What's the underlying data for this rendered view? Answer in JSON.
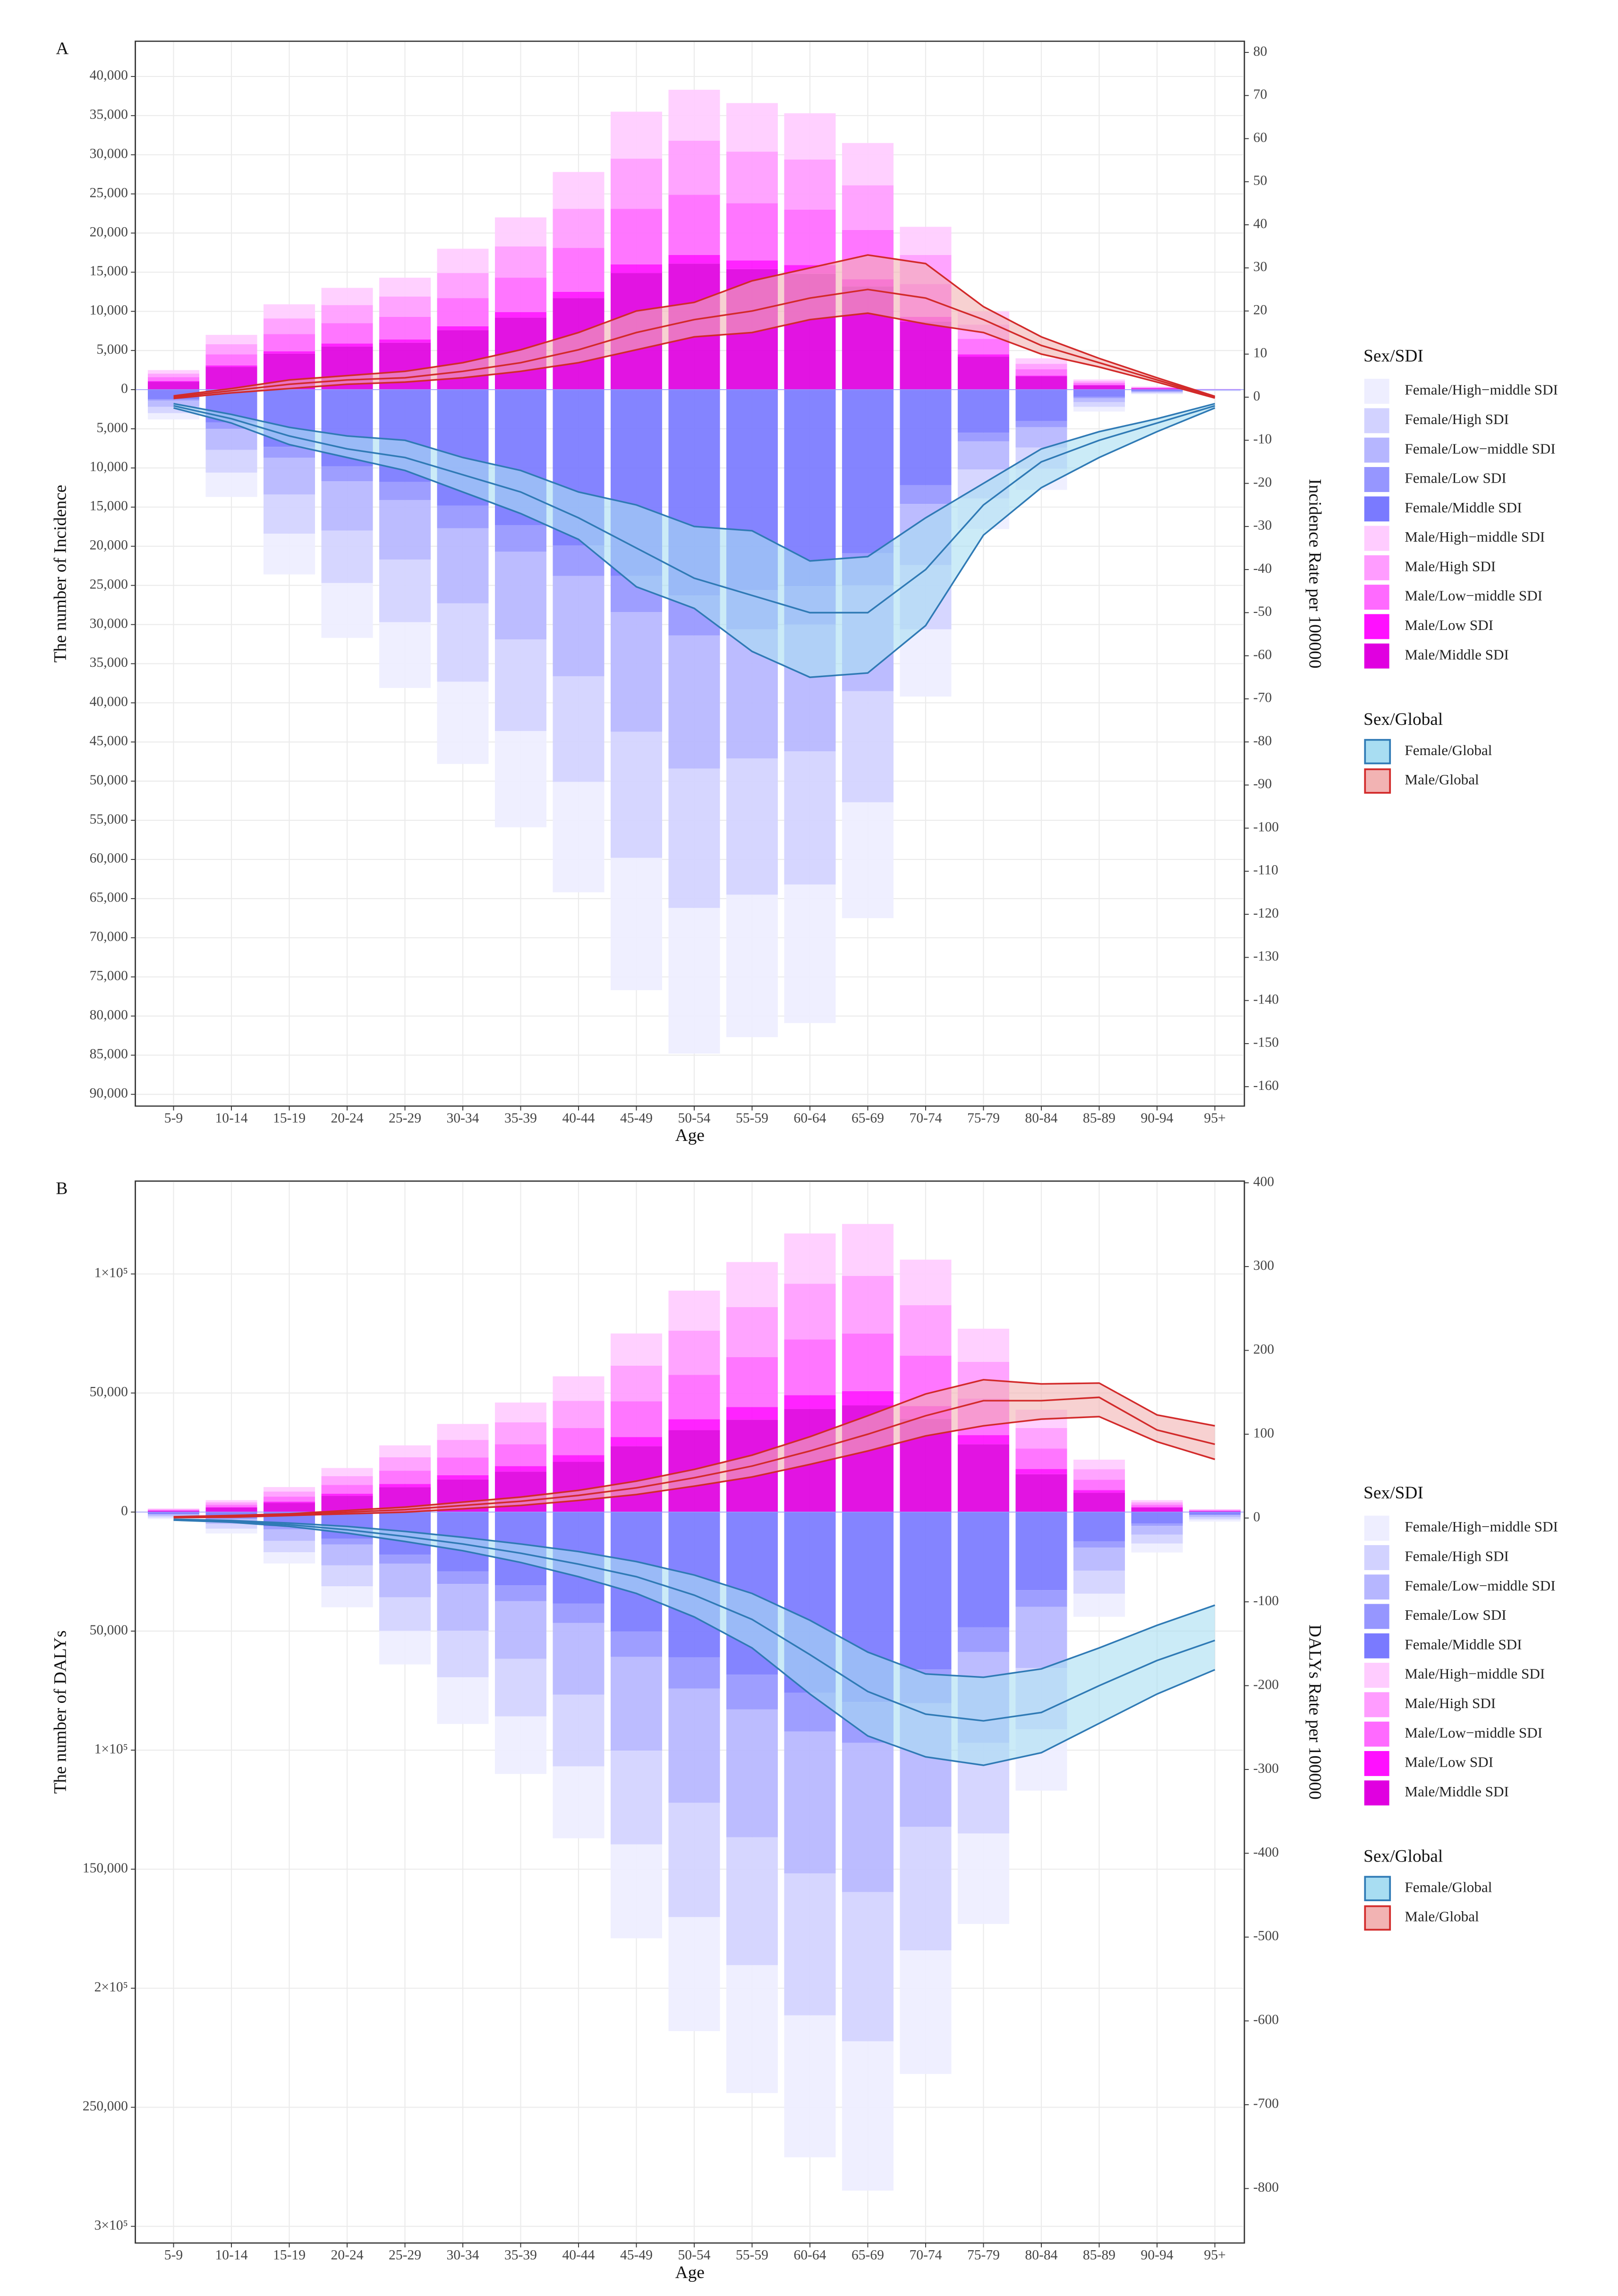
{
  "chart_data": [
    {
      "type": "bar",
      "panel_label": "A",
      "xlabel": "Age",
      "ylabel": "The number of Incidence",
      "y2label": "Incidence Rate per 100000",
      "legend_title": "Sex/SDI",
      "legend2_title": "Sex/Global",
      "grid": true,
      "categories": [
        "5-9",
        "10-14",
        "15-19",
        "20-24",
        "25-29",
        "30-34",
        "35-39",
        "40-44",
        "45-49",
        "50-54",
        "55-59",
        "60-64",
        "65-69",
        "70-74",
        "75-79",
        "80-84",
        "85-89",
        "90-94",
        "95+"
      ],
      "ylim": [
        -91500,
        44500
      ],
      "yticks": [
        {
          "value": 40000,
          "label": "40,000"
        },
        {
          "value": 35000,
          "label": "35,000"
        },
        {
          "value": 30000,
          "label": "30,000"
        },
        {
          "value": 25000,
          "label": "25,000"
        },
        {
          "value": 20000,
          "label": "20,000"
        },
        {
          "value": 15000,
          "label": "15,000"
        },
        {
          "value": 10000,
          "label": "10,000"
        },
        {
          "value": 5000,
          "label": "5,000"
        },
        0,
        {
          "value": -5000,
          "label": "5,000"
        },
        {
          "value": -10000,
          "label": "10,000"
        },
        {
          "value": -15000,
          "label": "15,000"
        },
        {
          "value": -20000,
          "label": "20,000"
        },
        {
          "value": -25000,
          "label": "25,000"
        },
        {
          "value": -30000,
          "label": "30,000"
        },
        {
          "value": -35000,
          "label": "35,000"
        },
        {
          "value": -40000,
          "label": "40,000"
        },
        {
          "value": -45000,
          "label": "45,000"
        },
        {
          "value": -50000,
          "label": "50,000"
        },
        {
          "value": -55000,
          "label": "55,000"
        },
        {
          "value": -60000,
          "label": "60,000"
        },
        {
          "value": -65000,
          "label": "65,000"
        },
        {
          "value": -70000,
          "label": "70,000"
        },
        {
          "value": -75000,
          "label": "75,000"
        },
        {
          "value": -80000,
          "label": "80,000"
        },
        {
          "value": -85000,
          "label": "85,000"
        },
        {
          "value": -90000,
          "label": "90,000"
        }
      ],
      "y2lim": [
        -164.5,
        82.6
      ],
      "y2ticks": [
        80,
        70,
        60,
        50,
        40,
        30,
        20,
        10,
        0,
        -10,
        -20,
        -30,
        -40,
        -50,
        -60,
        -70,
        -80,
        -90,
        -100,
        -110,
        -120,
        -130,
        -140,
        -150,
        -160
      ],
      "series": [
        {
          "name": "Female/High−middle SDI",
          "color": "#eeeeff",
          "values": [
            -800,
            -3100,
            -5200,
            -7000,
            -8400,
            -10500,
            -12300,
            -14100,
            -16900,
            -18600,
            -18200,
            -17700,
            -14800,
            -8600,
            -3900,
            -2700,
            -600,
            -120,
            -50
          ]
        },
        {
          "name": "Female/High SDI",
          "color": "#d2d2ff",
          "values": [
            -800,
            -2900,
            -5000,
            -6700,
            -8000,
            -10000,
            -11700,
            -13500,
            -16100,
            -17800,
            -17400,
            -17000,
            -14200,
            -8200,
            -3700,
            -2700,
            -600,
            -120,
            -40
          ]
        },
        {
          "name": "Female/Low−middle SDI",
          "color": "#b6b6ff",
          "values": [
            -800,
            -2700,
            -4700,
            -6300,
            -7600,
            -9600,
            -11200,
            -12800,
            -15300,
            -17000,
            -16500,
            -16200,
            -13500,
            -7800,
            -3600,
            -2600,
            -500,
            -120,
            -40
          ]
        },
        {
          "name": "Female/Low SDI",
          "color": "#9696ff",
          "values": [
            -200,
            -800,
            -1400,
            -1900,
            -2300,
            -2900,
            -3400,
            -3900,
            -4600,
            -5100,
            -5000,
            -4900,
            -4100,
            -2400,
            -1100,
            -800,
            -200,
            -40,
            -10
          ]
        },
        {
          "name": "Female/Middle SDI",
          "color": "#7a7aff",
          "values": [
            -1200,
            -4200,
            -7300,
            -9800,
            -11800,
            -14800,
            -17300,
            -19900,
            -23800,
            -26300,
            -25600,
            -25100,
            -20900,
            -12200,
            -5500,
            -4000,
            -900,
            -200,
            -60
          ]
        },
        {
          "name": "Male/High−middle SDI",
          "color": "#ffccff",
          "values": [
            450,
            1200,
            1800,
            2200,
            2400,
            3100,
            3700,
            4700,
            6000,
            6500,
            6200,
            5900,
            5400,
            3600,
            1700,
            700,
            220,
            70,
            15
          ]
        },
        {
          "name": "Male/High SDI",
          "color": "#ff9cff",
          "values": [
            450,
            1300,
            2000,
            2300,
            2600,
            3200,
            4000,
            5000,
            6400,
            6900,
            6600,
            6400,
            5700,
            3700,
            1800,
            700,
            230,
            70,
            20
          ]
        },
        {
          "name": "Male/Low−middle SDI",
          "color": "#ff6aff",
          "values": [
            500,
            1400,
            2200,
            2600,
            2900,
            3600,
            4400,
            5600,
            7100,
            7700,
            7300,
            7100,
            6300,
            4200,
            2000,
            800,
            260,
            80,
            20
          ]
        },
        {
          "name": "Male/Low SDI",
          "color": "#ff10ff",
          "values": [
            100,
            200,
            300,
            400,
            400,
            500,
            700,
            800,
            1100,
            1100,
            1100,
            1100,
            900,
            600,
            300,
            100,
            40,
            10,
            5
          ]
        },
        {
          "name": "Male/Middle SDI",
          "color": "#e000e0",
          "values": [
            1000,
            2900,
            4600,
            5500,
            6000,
            7600,
            9200,
            11700,
            14900,
            16100,
            15400,
            14800,
            13200,
            8700,
            4200,
            1700,
            550,
            170,
            40
          ]
        }
      ],
      "rate_series": [
        {
          "name": "Female/Global",
          "axis": "y2",
          "color": "#2f7ab5",
          "fill": "#a8ddf2",
          "values": [
            -2,
            -5,
            -9,
            -12,
            -14,
            -18,
            -22,
            -28,
            -35,
            -42,
            -46,
            -50,
            -50,
            -40,
            -25,
            -15,
            -10,
            -6,
            -2
          ],
          "upper": [
            -1.5,
            -4,
            -7,
            -9,
            -10,
            -14,
            -17,
            -22,
            -25,
            -30,
            -31,
            -38,
            -37,
            -28,
            -20,
            -12,
            -8,
            -5,
            -1.5
          ],
          "lower": [
            -2.5,
            -6,
            -11,
            -14,
            -17,
            -22,
            -27,
            -33,
            -44,
            -49,
            -59,
            -65,
            -64,
            -53,
            -32,
            -21,
            -14,
            -8,
            -2.5
          ]
        },
        {
          "name": "Male/Global",
          "axis": "y2",
          "color": "#d22a2a",
          "fill": "#f2b3b3",
          "values": [
            0,
            1.5,
            3,
            4,
            4.5,
            6,
            8,
            11,
            15,
            18,
            20,
            23,
            25,
            23,
            18,
            12,
            8,
            4,
            0
          ],
          "upper": [
            0.3,
            2,
            4,
            5,
            6,
            8,
            11,
            15,
            20,
            22,
            27,
            30,
            33,
            31,
            21,
            14,
            9,
            4.5,
            0.2
          ],
          "lower": [
            -0.3,
            1,
            2,
            3,
            3.5,
            4.5,
            6,
            8,
            11,
            14,
            15,
            18,
            19.5,
            17,
            15,
            10,
            7,
            3.5,
            -0.2
          ]
        }
      ]
    },
    {
      "type": "bar",
      "panel_label": "B",
      "xlabel": "Age",
      "ylabel": "The number of DALYs",
      "y2label": "DALYs Rate per 100000",
      "legend_title": "Sex/SDI",
      "legend2_title": "Sex/Global",
      "grid": true,
      "categories": [
        "5-9",
        "10-14",
        "15-19",
        "20-24",
        "25-29",
        "30-34",
        "35-39",
        "40-44",
        "45-49",
        "50-54",
        "55-59",
        "60-64",
        "65-69",
        "70-74",
        "75-79",
        "80-84",
        "85-89",
        "90-94",
        "95+"
      ],
      "ylim": [
        -307000,
        139000
      ],
      "yticks": [
        {
          "value": 100000,
          "label": "1×10⁵"
        },
        {
          "value": 50000,
          "label": "50,000"
        },
        0,
        {
          "value": -50000,
          "label": "50,000"
        },
        {
          "value": -100000,
          "label": "1×10⁵"
        },
        {
          "value": -150000,
          "label": "150,000"
        },
        {
          "value": -200000,
          "label": "2×10⁵"
        },
        {
          "value": -250000,
          "label": "250,000"
        },
        {
          "value": -300000,
          "label": "3×10⁵"
        }
      ],
      "y2lim": [
        -865,
        402
      ],
      "y2ticks": [
        400,
        300,
        200,
        100,
        0,
        -100,
        -200,
        -300,
        -400,
        -500,
        -600,
        -700,
        -800
      ],
      "series": [
        {
          "name": "Female/High−middle SDI",
          "color": "#eeeeff",
          "values": [
            -660,
            -2000,
            -4700,
            -8800,
            -14100,
            -19600,
            -24200,
            -30200,
            -39400,
            -47900,
            -53700,
            -59600,
            -62700,
            -51900,
            -38000,
            -25800,
            -9700,
            -3800,
            -900
          ]
        },
        {
          "name": "Female/High SDI",
          "color": "#d2d2ff",
          "values": [
            -660,
            -1980,
            -4800,
            -8800,
            -14100,
            -19600,
            -24200,
            -30100,
            -39400,
            -48000,
            -53700,
            -59600,
            -62700,
            -51900,
            -38100,
            -25700,
            -9700,
            -3700,
            -880
          ]
        },
        {
          "name": "Female/Low−middle SDI",
          "color": "#b6b6ff",
          "values": [
            -660,
            -1980,
            -4800,
            -8800,
            -14100,
            -19600,
            -24200,
            -30100,
            -39400,
            -48000,
            -53700,
            -59600,
            -62700,
            -51900,
            -38100,
            -25700,
            -9700,
            -3700,
            -880
          ]
        },
        {
          "name": "Female/Low SDI",
          "color": "#9696ff",
          "values": [
            -180,
            -540,
            -1300,
            -2400,
            -3800,
            -5300,
            -6600,
            -8200,
            -10700,
            -13100,
            -14600,
            -16300,
            -17100,
            -14200,
            -10400,
            -7000,
            -2600,
            -1000,
            -240
          ]
        },
        {
          "name": "Female/Middle SDI",
          "color": "#7a7aff",
          "values": [
            -840,
            -2500,
            -6000,
            -11200,
            -17900,
            -24900,
            -30800,
            -38400,
            -50100,
            -61000,
            -68300,
            -75900,
            -79800,
            -66100,
            -48400,
            -32800,
            -12300,
            -4800,
            -1100
          ]
        },
        {
          "name": "Male/High−middle SDI",
          "color": "#ffccff",
          "values": [
            270,
            900,
            1900,
            3400,
            5000,
            6700,
            8300,
            10300,
            13500,
            16800,
            18900,
            21100,
            21800,
            19100,
            13900,
            7700,
            4000,
            900,
            220
          ]
        },
        {
          "name": "Male/High SDI",
          "color": "#ff9cff",
          "values": [
            300,
            1000,
            2100,
            3700,
            5600,
            7400,
            9200,
            11400,
            15000,
            18600,
            21000,
            23400,
            24200,
            21200,
            15400,
            8600,
            4400,
            1000,
            240
          ]
        },
        {
          "name": "Male/Low−middle SDI",
          "color": "#ff6aff",
          "values": [
            300,
            1000,
            2100,
            3700,
            5600,
            7400,
            9200,
            11400,
            15000,
            18600,
            21000,
            23400,
            24200,
            21200,
            15400,
            8600,
            4400,
            1000,
            240
          ]
        },
        {
          "name": "Male/Low SDI",
          "color": "#ff10ff",
          "values": [
            80,
            250,
            500,
            900,
            1400,
            1800,
            2300,
            2800,
            3800,
            4600,
            5300,
            5800,
            6000,
            5300,
            3800,
            2200,
            1100,
            250,
            60
          ]
        },
        {
          "name": "Male/Middle SDI",
          "color": "#e000e0",
          "values": [
            550,
            1850,
            3900,
            6800,
            10400,
            13700,
            17000,
            21100,
            27700,
            34400,
            38800,
            43300,
            44800,
            39200,
            28500,
            15900,
            8100,
            1850,
            440
          ]
        }
      ],
      "rate_series": [
        {
          "name": "Female/Global",
          "axis": "y2",
          "color": "#2f7ab5",
          "fill": "#a8ddf2",
          "values": [
            -2,
            -4,
            -8,
            -14,
            -22,
            -31,
            -42,
            -55,
            -70,
            -92,
            -121,
            -163,
            -207,
            -234,
            -242,
            -232,
            -200,
            -170,
            -146
          ],
          "upper": [
            -1.5,
            -3,
            -6,
            -10,
            -16,
            -23,
            -31,
            -40,
            -52,
            -68,
            -90,
            -122,
            -160,
            -186,
            -190,
            -180,
            -155,
            -128,
            -104
          ],
          "lower": [
            -2.5,
            -5,
            -10,
            -18,
            -28,
            -39,
            -53,
            -70,
            -90,
            -118,
            -155,
            -210,
            -260,
            -285,
            -295,
            -280,
            -245,
            -210,
            -181
          ]
        },
        {
          "name": "Male/Global",
          "axis": "y2",
          "color": "#d22a2a",
          "fill": "#f2b3b3",
          "values": [
            1,
            2,
            4,
            7,
            10,
            15,
            20,
            27,
            36,
            48,
            62,
            80,
            100,
            122,
            140,
            140,
            144,
            105,
            88
          ],
          "upper": [
            1.5,
            3,
            5,
            9,
            13,
            19,
            25,
            33,
            44,
            58,
            75,
            97,
            122,
            148,
            165,
            160,
            161,
            123,
            110
          ],
          "lower": [
            0.5,
            1,
            3,
            5,
            7,
            11,
            15,
            21,
            28,
            38,
            49,
            64,
            80,
            98,
            110,
            118,
            121,
            91,
            70
          ]
        }
      ]
    }
  ]
}
